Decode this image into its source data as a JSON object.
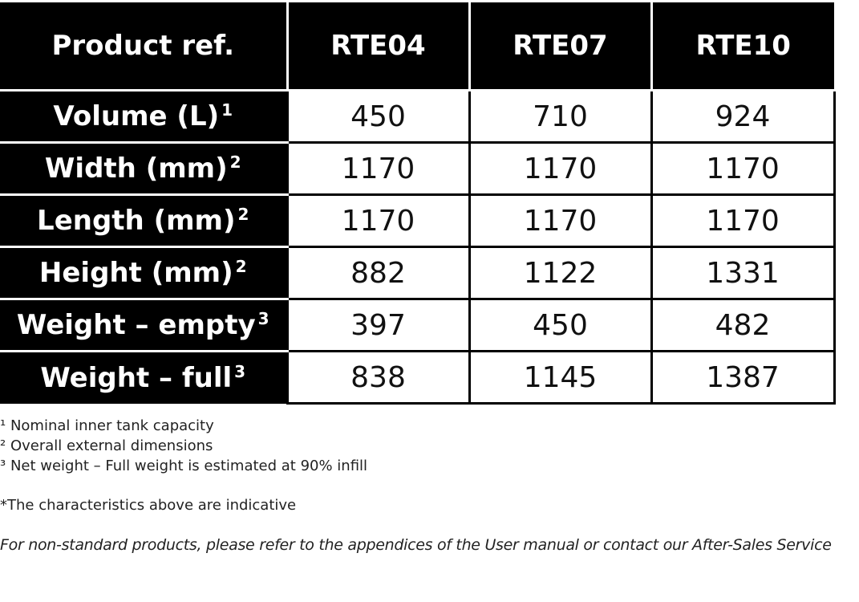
{
  "table": {
    "header": [
      "Product ref.",
      "RTE04",
      "RTE07",
      "RTE10"
    ],
    "rows": [
      {
        "label": "Volume (L)",
        "note": "1",
        "values": [
          "450",
          "710",
          "924"
        ]
      },
      {
        "label": "Width (mm)",
        "note": "2",
        "values": [
          "1170",
          "1170",
          "1170"
        ]
      },
      {
        "label": "Length (mm)",
        "note": "2",
        "values": [
          "1170",
          "1170",
          "1170"
        ]
      },
      {
        "label": "Height (mm)",
        "note": "2",
        "values": [
          "882",
          "1122",
          "1331"
        ]
      },
      {
        "label": "Weight – empty",
        "note": "3",
        "values": [
          "397",
          "450",
          "482"
        ]
      },
      {
        "label": "Weight – full",
        "note": "3",
        "values": [
          "838",
          "1145",
          "1387"
        ]
      }
    ]
  },
  "footnotes": [
    "¹ Nominal inner tank capacity",
    "² Overall external dimensions",
    "³ Net weight – Full weight is estimated at 90% infill"
  ],
  "disclaimer": "*The characteristics above are indicative",
  "advice": "For non-standard products, please refer to the appendices of the User manual or contact our After-Sales Service"
}
